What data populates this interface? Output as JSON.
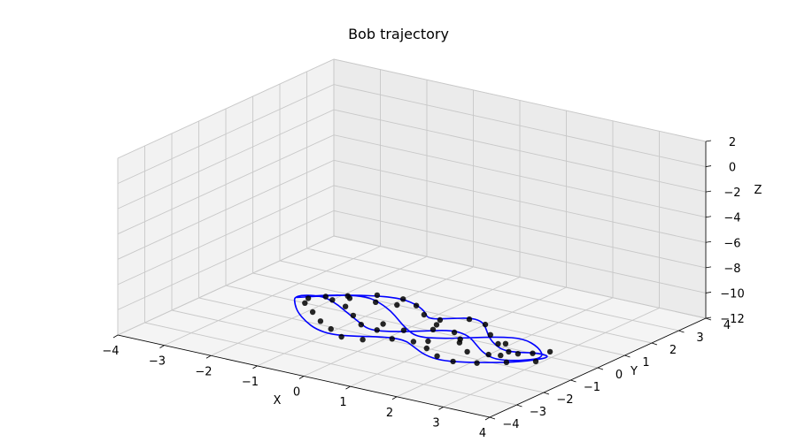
{
  "chart_data": {
    "type": "line",
    "projection": "3d",
    "title": "Bob trajectory",
    "xlabel": "X",
    "ylabel": "Y",
    "zlabel": "Z",
    "xlim": [
      -4,
      4
    ],
    "ylim": [
      -4,
      4
    ],
    "zlim": [
      -12,
      2
    ],
    "x_ticks": [
      "−4",
      "−3",
      "−2",
      "−1",
      "0",
      "1",
      "2",
      "3",
      "4"
    ],
    "y_ticks": [
      "−4",
      "−3",
      "−2",
      "−1",
      "0",
      "1",
      "2",
      "3",
      "4"
    ],
    "z_ticks": [
      "2",
      "0",
      "−2",
      "−4",
      "−6",
      "−8",
      "−10",
      "−12"
    ],
    "grid": true,
    "series": [
      {
        "style": "line",
        "color": "#0000ff",
        "x": [
          -2.6,
          -2.1,
          -1.6,
          -1.1,
          -0.7,
          -0.3,
          0.0,
          0.3,
          0.6,
          0.9,
          1.2,
          1.5,
          1.8,
          2.1,
          2.4,
          2.7,
          3.0,
          2.7,
          2.3,
          1.9,
          1.5,
          1.1,
          0.7,
          0.3,
          -0.1,
          -0.5,
          -0.9,
          -1.3,
          -1.7,
          -2.1,
          -2.4,
          -2.7,
          -2.3,
          -1.9,
          -1.4,
          -0.9,
          -0.5,
          -0.1,
          0.3,
          0.7,
          1.1,
          1.5,
          1.9,
          2.3,
          2.7,
          2.9,
          2.5,
          2.0,
          1.6,
          1.2,
          0.8,
          0.4,
          0.0,
          -0.4,
          -0.8,
          -1.2,
          -1.6,
          -2.0,
          -2.4,
          -2.6
        ],
        "y": [
          0.2,
          0.8,
          1.2,
          1.4,
          1.3,
          1.0,
          0.6,
          0.9,
          1.2,
          1.1,
          0.7,
          0.3,
          0.0,
          -0.2,
          -0.1,
          0.1,
          0.0,
          -0.6,
          -1.0,
          -1.3,
          -1.5,
          -1.4,
          -1.1,
          -0.8,
          -0.9,
          -1.2,
          -1.4,
          -1.3,
          -1.0,
          -0.6,
          -0.2,
          0.3,
          0.6,
          0.4,
          0.0,
          -0.4,
          -0.7,
          -0.5,
          -0.1,
          0.3,
          0.2,
          -0.2,
          -0.6,
          -0.8,
          -0.5,
          -0.1,
          0.4,
          0.7,
          0.5,
          0.1,
          -0.3,
          -0.5,
          -0.2,
          0.2,
          0.6,
          0.9,
          1.1,
          0.9,
          0.5,
          0.2
        ],
        "z": [
          -12,
          -12,
          -12,
          -12,
          -12,
          -12,
          -12,
          -12,
          -12,
          -12,
          -12,
          -12,
          -12,
          -12,
          -12,
          -12,
          -12,
          -12,
          -12,
          -12,
          -12,
          -12,
          -12,
          -12,
          -12,
          -12,
          -12,
          -12,
          -12,
          -12,
          -12,
          -12,
          -12,
          -12,
          -12,
          -12,
          -12,
          -12,
          -12,
          -12,
          -12,
          -12,
          -12,
          -12,
          -12,
          -12,
          -12,
          -12,
          -12,
          -12,
          -12,
          -12,
          -12,
          -12,
          -12,
          -12,
          -12,
          -12,
          -12,
          -12
        ]
      },
      {
        "style": "markers",
        "color": "#000000",
        "x": [
          -2.4,
          -1.9,
          -1.5,
          -1.0,
          -0.6,
          -0.2,
          0.2,
          0.6,
          1.0,
          1.4,
          1.8,
          2.2,
          2.6,
          2.9,
          2.5,
          2.1,
          1.7,
          1.3,
          0.9,
          0.5,
          0.1,
          -0.3,
          -0.7,
          -1.1,
          -1.5,
          -1.9,
          -2.3,
          -2.0,
          -1.6,
          -1.2,
          -0.8,
          -0.4,
          0.0,
          0.4,
          0.8,
          1.2,
          1.6,
          2.0,
          2.4,
          2.8,
          -1.8,
          -0.9,
          0.3,
          1.1,
          2.2,
          -2.2,
          -1.3,
          -0.5,
          0.7,
          1.9
        ],
        "y": [
          0.3,
          0.9,
          1.3,
          1.4,
          1.2,
          0.8,
          0.7,
          1.1,
          1.0,
          0.5,
          0.1,
          -0.2,
          0.0,
          -0.4,
          -0.8,
          -1.2,
          -1.4,
          -1.3,
          -1.0,
          -0.8,
          -0.9,
          -1.3,
          -1.4,
          -1.1,
          -0.8,
          -0.4,
          0.0,
          0.5,
          0.3,
          -0.1,
          -0.5,
          -0.6,
          -0.3,
          0.1,
          0.2,
          -0.3,
          -0.7,
          -0.6,
          -0.2,
          0.3,
          0.8,
          1.0,
          0.4,
          -0.1,
          -0.5,
          0.6,
          0.9,
          -0.2,
          -0.6,
          0.2
        ],
        "z": [
          -12,
          -12,
          -12,
          -12,
          -12,
          -12,
          -12,
          -12,
          -12,
          -12,
          -12,
          -12,
          -12,
          -12,
          -12,
          -12,
          -12,
          -12,
          -12,
          -12,
          -12,
          -12,
          -12,
          -12,
          -12,
          -12,
          -12,
          -12,
          -12,
          -12,
          -12,
          -12,
          -12,
          -12,
          -12,
          -12,
          -12,
          -12,
          -12,
          -12,
          -12,
          -12,
          -12,
          -12,
          -12,
          -12,
          -12,
          -12,
          -12,
          -12
        ]
      }
    ]
  }
}
